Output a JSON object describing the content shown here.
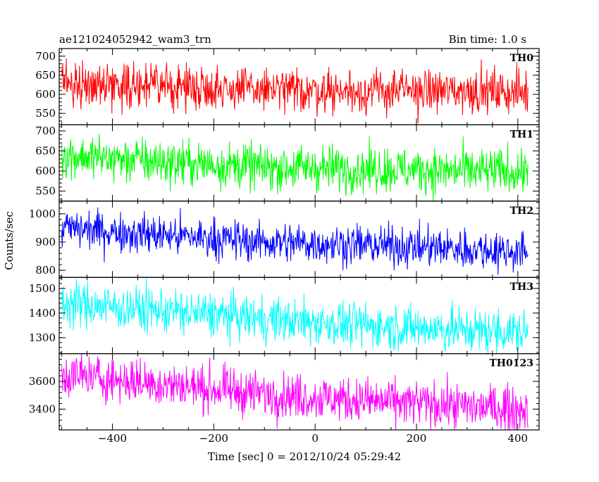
{
  "header": {
    "left_title": "ae121024052942_wam3_trn",
    "right_title": "Bin time: 1.0 s"
  },
  "chart_data": {
    "type": "line",
    "xlabel": "Time [sec] 0 = 2012/10/24 05:29:42",
    "ylabel": "Counts/sec",
    "xlim": [
      -505,
      442
    ],
    "x_ticks": [
      -400,
      -200,
      0,
      200,
      400
    ],
    "x_tick_labels": [
      "−400",
      "−200",
      "0",
      "200",
      "400"
    ],
    "x_data_range": [
      -500,
      420
    ],
    "bin_time_s": 1.0,
    "grid": false,
    "panels": [
      {
        "name": "TH0",
        "color": "#ff0000",
        "ylim": [
          520,
          720
        ],
        "y_ticks": [
          550,
          600,
          650,
          700
        ],
        "y_tick_labels": [
          "550",
          "600",
          "650",
          "700"
        ],
        "trend": [
          [
            -500,
            630
          ],
          [
            -300,
            622
          ],
          [
            -100,
            612
          ],
          [
            100,
            608
          ],
          [
            300,
            610
          ],
          [
            420,
            605
          ]
        ],
        "noise_amplitude": 28
      },
      {
        "name": "TH1",
        "color": "#00ff00",
        "ylim": [
          525,
          715
        ],
        "y_ticks": [
          550,
          600,
          650,
          700
        ],
        "y_tick_labels": [
          "550",
          "600",
          "650",
          "700"
        ],
        "trend": [
          [
            -500,
            640
          ],
          [
            -300,
            622
          ],
          [
            -100,
            610
          ],
          [
            100,
            605
          ],
          [
            300,
            600
          ],
          [
            420,
            598
          ]
        ],
        "noise_amplitude": 28
      },
      {
        "name": "TH2",
        "color": "#0000ff",
        "ylim": [
          775,
          1045
        ],
        "y_ticks": [
          800,
          900,
          1000
        ],
        "y_tick_labels": [
          "800",
          "900",
          "1000"
        ],
        "trend": [
          [
            -500,
            950
          ],
          [
            -300,
            925
          ],
          [
            -100,
            900
          ],
          [
            100,
            890
          ],
          [
            300,
            875
          ],
          [
            420,
            865
          ]
        ],
        "noise_amplitude": 35
      },
      {
        "name": "TH3",
        "color": "#00ffff",
        "ylim": [
          1235,
          1545
        ],
        "y_ticks": [
          1300,
          1400,
          1500
        ],
        "y_tick_labels": [
          "1300",
          "1400",
          "1500"
        ],
        "trend": [
          [
            -500,
            1440
          ],
          [
            -300,
            1410
          ],
          [
            -100,
            1375
          ],
          [
            100,
            1350
          ],
          [
            300,
            1330
          ],
          [
            420,
            1320
          ]
        ],
        "noise_amplitude": 45
      },
      {
        "name": "TH0123",
        "color": "#ff00ff",
        "ylim": [
          3250,
          3800
        ],
        "y_ticks": [
          3400,
          3600
        ],
        "y_tick_labels": [
          "3400",
          "3600"
        ],
        "trend": [
          [
            -500,
            3650
          ],
          [
            -300,
            3580
          ],
          [
            -100,
            3510
          ],
          [
            100,
            3460
          ],
          [
            300,
            3420
          ],
          [
            420,
            3400
          ]
        ],
        "noise_amplitude": 80
      }
    ]
  }
}
